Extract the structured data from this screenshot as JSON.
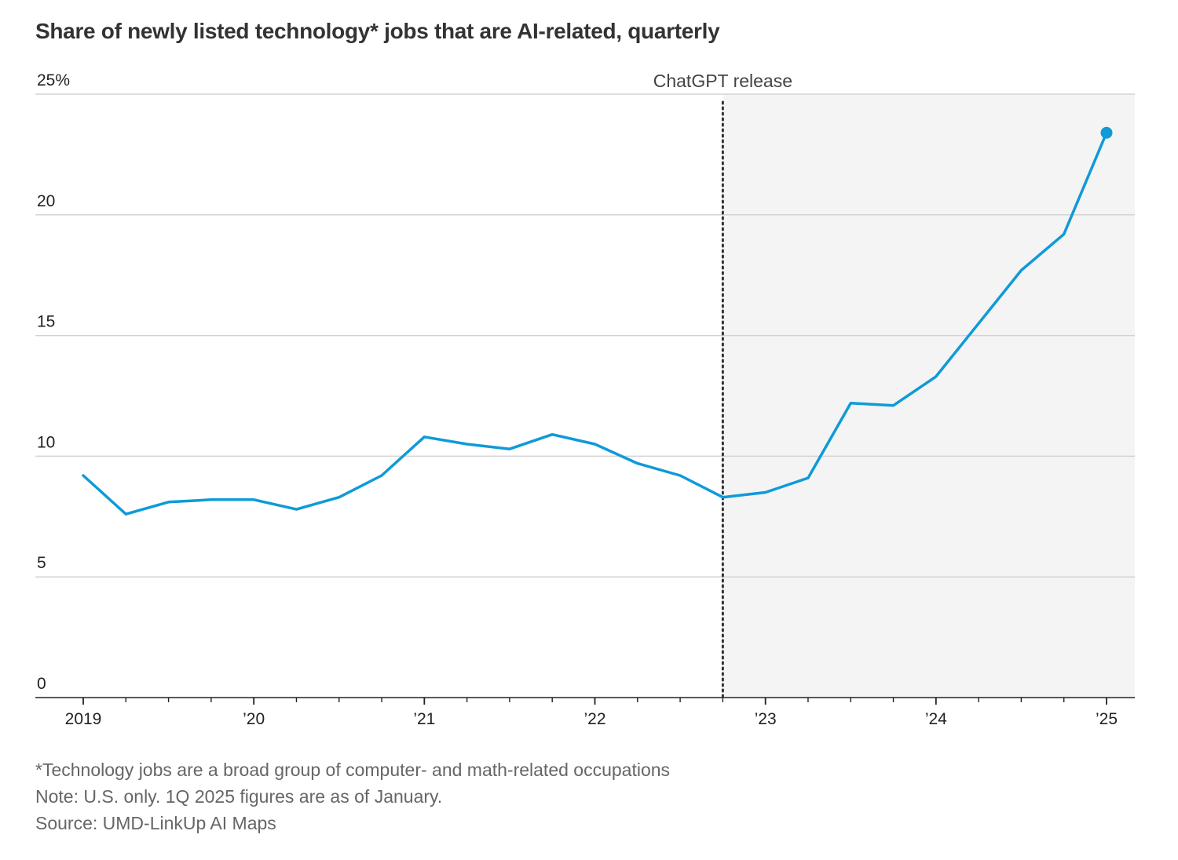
{
  "chart_data": {
    "type": "line",
    "title": "Share of newly listed technology* jobs that are AI-related, quarterly",
    "ylabel": "",
    "xlabel": "",
    "ylim": [
      0,
      25
    ],
    "yticks": [
      {
        "value": 0,
        "label": "0"
      },
      {
        "value": 5,
        "label": "5"
      },
      {
        "value": 10,
        "label": "10"
      },
      {
        "value": 15,
        "label": "15"
      },
      {
        "value": 20,
        "label": "20"
      },
      {
        "value": 25,
        "label": "25%"
      }
    ],
    "xlim": [
      "2019 Q1",
      "2025 Q1"
    ],
    "xticks": [
      "2019",
      "’20",
      "’21",
      "’22",
      "’23",
      "’24",
      "’25"
    ],
    "grid": true,
    "color": "#0f9ad8",
    "series": [
      {
        "x": [
          "2019 Q1",
          "2019 Q2",
          "2019 Q3",
          "2019 Q4",
          "2020 Q1",
          "2020 Q2",
          "2020 Q3",
          "2020 Q4",
          "2021 Q1",
          "2021 Q2",
          "2021 Q3",
          "2021 Q4",
          "2022 Q1",
          "2022 Q2",
          "2022 Q3",
          "2022 Q4",
          "2023 Q1",
          "2023 Q2",
          "2023 Q3",
          "2023 Q4",
          "2024 Q1",
          "2024 Q2",
          "2024 Q3",
          "2024 Q4",
          "2025 Q1"
        ],
        "values": [
          9.2,
          7.6,
          8.1,
          8.2,
          8.2,
          7.8,
          8.3,
          9.2,
          10.8,
          10.5,
          10.3,
          10.9,
          10.5,
          9.7,
          9.2,
          8.3,
          8.5,
          9.1,
          12.2,
          12.1,
          13.3,
          15.5,
          17.7,
          19.2,
          23.4
        ]
      }
    ],
    "annotation": {
      "label": "ChatGPT release",
      "x": "2022 Q4",
      "shaded_region": [
        "2022 Q4",
        "2025 Q1"
      ]
    }
  },
  "notes": {
    "footnote": "*Technology jobs are a broad group of computer- and math-related occupations",
    "note": "Note: U.S. only. 1Q 2025 figures are as of January.",
    "source": "Source: UMD-LinkUp AI Maps"
  }
}
